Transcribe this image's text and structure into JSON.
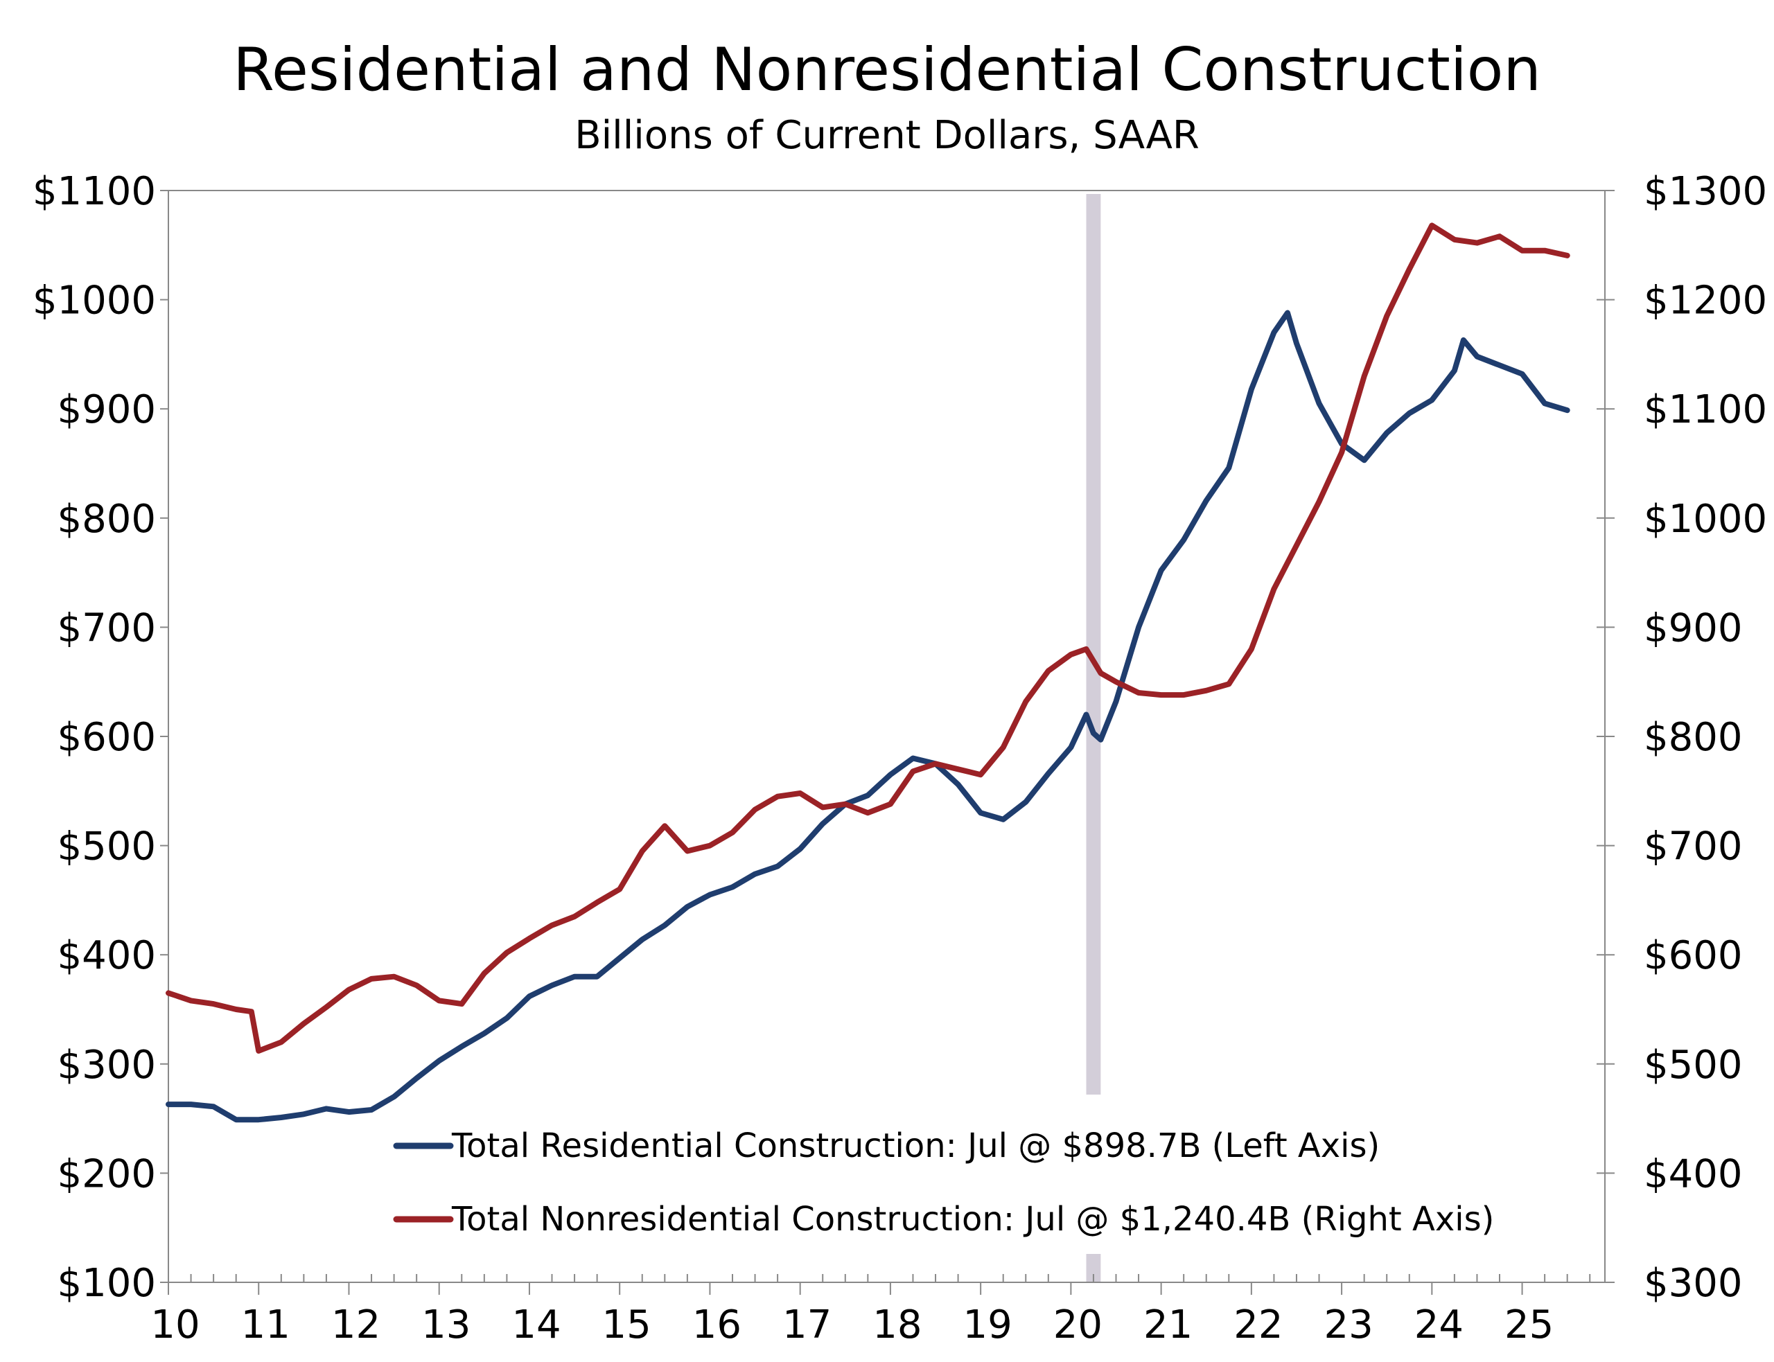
{
  "chart_data": {
    "type": "line",
    "title": "Residential and Nonresidential Construction",
    "subtitle": "Billions of Current Dollars, SAAR",
    "x_ticks": [
      "10",
      "11",
      "12",
      "13",
      "14",
      "15",
      "16",
      "17",
      "18",
      "19",
      "20",
      "21",
      "22",
      "23",
      "24",
      "25"
    ],
    "x_range": [
      2010.0,
      2025.917
    ],
    "y_left": {
      "range": [
        100,
        1100
      ],
      "ticks": [
        100,
        200,
        300,
        400,
        500,
        600,
        700,
        800,
        900,
        1000,
        1100
      ],
      "tick_labels": [
        "$100",
        "$200",
        "$300",
        "$400",
        "$500",
        "$600",
        "$700",
        "$800",
        "$900",
        "$1000",
        "$1100"
      ]
    },
    "y_right": {
      "range": [
        300,
        1300
      ],
      "ticks": [
        300,
        400,
        500,
        600,
        700,
        800,
        900,
        1000,
        1100,
        1200,
        1300
      ],
      "tick_labels": [
        "$300",
        "$400",
        "$500",
        "$600",
        "$700",
        "$800",
        "$900",
        "$1000",
        "$1100",
        "$1200",
        "$1300"
      ]
    },
    "recession_shading": {
      "start": 2020.17,
      "end": 2020.33,
      "color": "#d3ced9"
    },
    "grid": false,
    "legend_position": "bottom-center",
    "series": [
      {
        "name": "Total Residential Construction: Jul @ $898.7B (Left Axis)",
        "axis": "left",
        "color": "#1f3d6e",
        "points": [
          [
            2010.0,
            263
          ],
          [
            2010.25,
            263
          ],
          [
            2010.5,
            261
          ],
          [
            2010.75,
            249
          ],
          [
            2011.0,
            249
          ],
          [
            2011.25,
            251
          ],
          [
            2011.5,
            254
          ],
          [
            2011.75,
            259
          ],
          [
            2012.0,
            256
          ],
          [
            2012.25,
            258
          ],
          [
            2012.5,
            270
          ],
          [
            2012.75,
            287
          ],
          [
            2013.0,
            303
          ],
          [
            2013.25,
            316
          ],
          [
            2013.5,
            328
          ],
          [
            2013.75,
            342
          ],
          [
            2014.0,
            362
          ],
          [
            2014.25,
            372
          ],
          [
            2014.5,
            380
          ],
          [
            2014.75,
            380
          ],
          [
            2015.0,
            397
          ],
          [
            2015.25,
            414
          ],
          [
            2015.5,
            427
          ],
          [
            2015.75,
            444
          ],
          [
            2016.0,
            455
          ],
          [
            2016.25,
            462
          ],
          [
            2016.5,
            474
          ],
          [
            2016.75,
            481
          ],
          [
            2017.0,
            497
          ],
          [
            2017.25,
            520
          ],
          [
            2017.5,
            538
          ],
          [
            2017.75,
            546
          ],
          [
            2018.0,
            565
          ],
          [
            2018.25,
            580
          ],
          [
            2018.5,
            575
          ],
          [
            2018.75,
            556
          ],
          [
            2019.0,
            530
          ],
          [
            2019.25,
            524
          ],
          [
            2019.5,
            540
          ],
          [
            2019.75,
            566
          ],
          [
            2020.0,
            590
          ],
          [
            2020.17,
            620
          ],
          [
            2020.25,
            603
          ],
          [
            2020.33,
            597
          ],
          [
            2020.5,
            632
          ],
          [
            2020.75,
            700
          ],
          [
            2021.0,
            752
          ],
          [
            2021.25,
            780
          ],
          [
            2021.5,
            816
          ],
          [
            2021.75,
            846
          ],
          [
            2022.0,
            918
          ],
          [
            2022.25,
            970
          ],
          [
            2022.4,
            988
          ],
          [
            2022.5,
            960
          ],
          [
            2022.75,
            905
          ],
          [
            2023.0,
            868
          ],
          [
            2023.25,
            853
          ],
          [
            2023.5,
            878
          ],
          [
            2023.75,
            896
          ],
          [
            2024.0,
            908
          ],
          [
            2024.25,
            935
          ],
          [
            2024.35,
            963
          ],
          [
            2024.5,
            948
          ],
          [
            2024.75,
            940
          ],
          [
            2025.0,
            932
          ],
          [
            2025.25,
            905
          ],
          [
            2025.5,
            898.7
          ]
        ]
      },
      {
        "name": "Total Nonresidential Construction: Jul @ $1,240.4B (Right Axis)",
        "axis": "right",
        "color": "#9b2226",
        "points": [
          [
            2010.0,
            565
          ],
          [
            2010.25,
            558
          ],
          [
            2010.5,
            555
          ],
          [
            2010.75,
            550
          ],
          [
            2010.92,
            548
          ],
          [
            2011.0,
            512
          ],
          [
            2011.25,
            520
          ],
          [
            2011.5,
            537
          ],
          [
            2011.75,
            552
          ],
          [
            2012.0,
            568
          ],
          [
            2012.25,
            578
          ],
          [
            2012.5,
            580
          ],
          [
            2012.75,
            572
          ],
          [
            2013.0,
            558
          ],
          [
            2013.25,
            555
          ],
          [
            2013.5,
            583
          ],
          [
            2013.75,
            602
          ],
          [
            2014.0,
            615
          ],
          [
            2014.25,
            627
          ],
          [
            2014.5,
            635
          ],
          [
            2014.75,
            648
          ],
          [
            2015.0,
            660
          ],
          [
            2015.25,
            695
          ],
          [
            2015.5,
            718
          ],
          [
            2015.75,
            695
          ],
          [
            2016.0,
            700
          ],
          [
            2016.25,
            712
          ],
          [
            2016.5,
            733
          ],
          [
            2016.75,
            745
          ],
          [
            2017.0,
            748
          ],
          [
            2017.25,
            735
          ],
          [
            2017.5,
            738
          ],
          [
            2017.75,
            730
          ],
          [
            2018.0,
            738
          ],
          [
            2018.25,
            768
          ],
          [
            2018.5,
            775
          ],
          [
            2018.75,
            770
          ],
          [
            2019.0,
            765
          ],
          [
            2019.25,
            790
          ],
          [
            2019.5,
            832
          ],
          [
            2019.75,
            860
          ],
          [
            2020.0,
            875
          ],
          [
            2020.17,
            880
          ],
          [
            2020.33,
            858
          ],
          [
            2020.5,
            850
          ],
          [
            2020.75,
            840
          ],
          [
            2021.0,
            838
          ],
          [
            2021.25,
            838
          ],
          [
            2021.5,
            842
          ],
          [
            2021.75,
            848
          ],
          [
            2022.0,
            880
          ],
          [
            2022.25,
            935
          ],
          [
            2022.5,
            975
          ],
          [
            2022.75,
            1015
          ],
          [
            2023.0,
            1060
          ],
          [
            2023.25,
            1130
          ],
          [
            2023.5,
            1185
          ],
          [
            2023.75,
            1228
          ],
          [
            2024.0,
            1268
          ],
          [
            2024.25,
            1255
          ],
          [
            2024.5,
            1252
          ],
          [
            2024.75,
            1258
          ],
          [
            2025.0,
            1245
          ],
          [
            2025.25,
            1245
          ],
          [
            2025.5,
            1240.4
          ]
        ]
      }
    ]
  }
}
